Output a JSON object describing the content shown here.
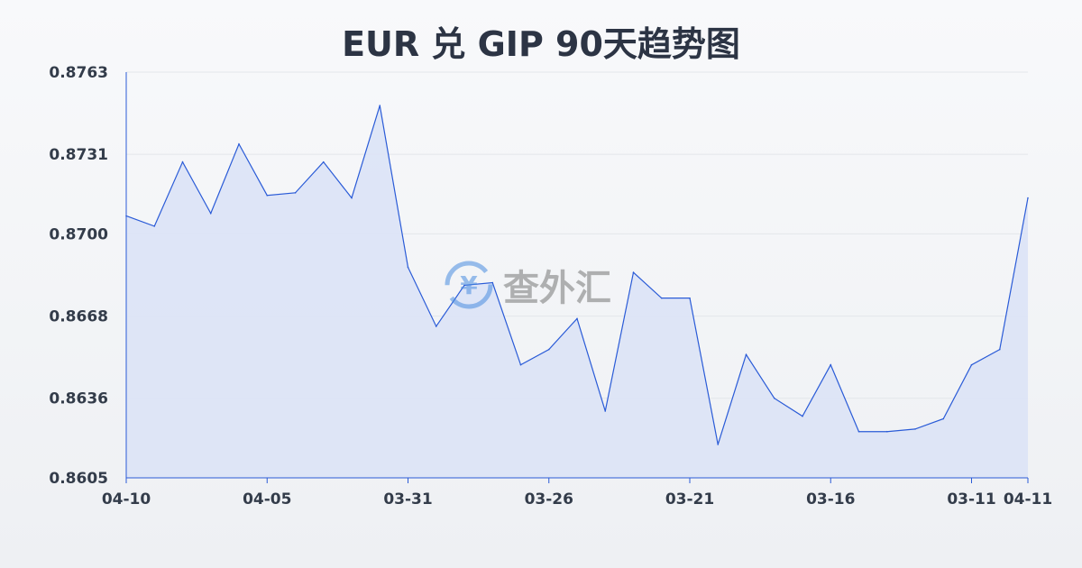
{
  "chart_data": {
    "type": "area",
    "title": "EUR 兑 GIP 90天趋势图",
    "xlabel": "",
    "ylabel": "",
    "ylim": [
      0.8605,
      0.8763
    ],
    "yticks": [
      "0.8763",
      "0.8731",
      "0.8700",
      "0.8668",
      "0.8636",
      "0.8605"
    ],
    "xticks": [
      {
        "index": 0,
        "label": "04-10"
      },
      {
        "index": 5,
        "label": "04-05"
      },
      {
        "index": 10,
        "label": "03-31"
      },
      {
        "index": 15,
        "label": "03-26"
      },
      {
        "index": 20,
        "label": "03-21"
      },
      {
        "index": 25,
        "label": "03-16"
      },
      {
        "index": 30,
        "label": "03-11"
      },
      {
        "index": 32,
        "label": "04-11"
      }
    ],
    "values": [
      0.8707,
      0.8703,
      0.8728,
      0.8708,
      0.8735,
      0.8715,
      0.8716,
      0.8728,
      0.8714,
      0.875,
      0.8687,
      0.8664,
      0.868,
      0.8681,
      0.8649,
      0.8655,
      0.8667,
      0.8631,
      0.8685,
      0.8675,
      0.8675,
      0.8618,
      0.8653,
      0.8636,
      0.8629,
      0.8649,
      0.8623,
      0.8623,
      0.8624,
      0.8628,
      0.8649,
      0.8655,
      0.8714
    ],
    "grid": true,
    "line_color": "#2a5bd7",
    "fill_color": "#dbe3f6"
  },
  "watermark": "查外汇"
}
